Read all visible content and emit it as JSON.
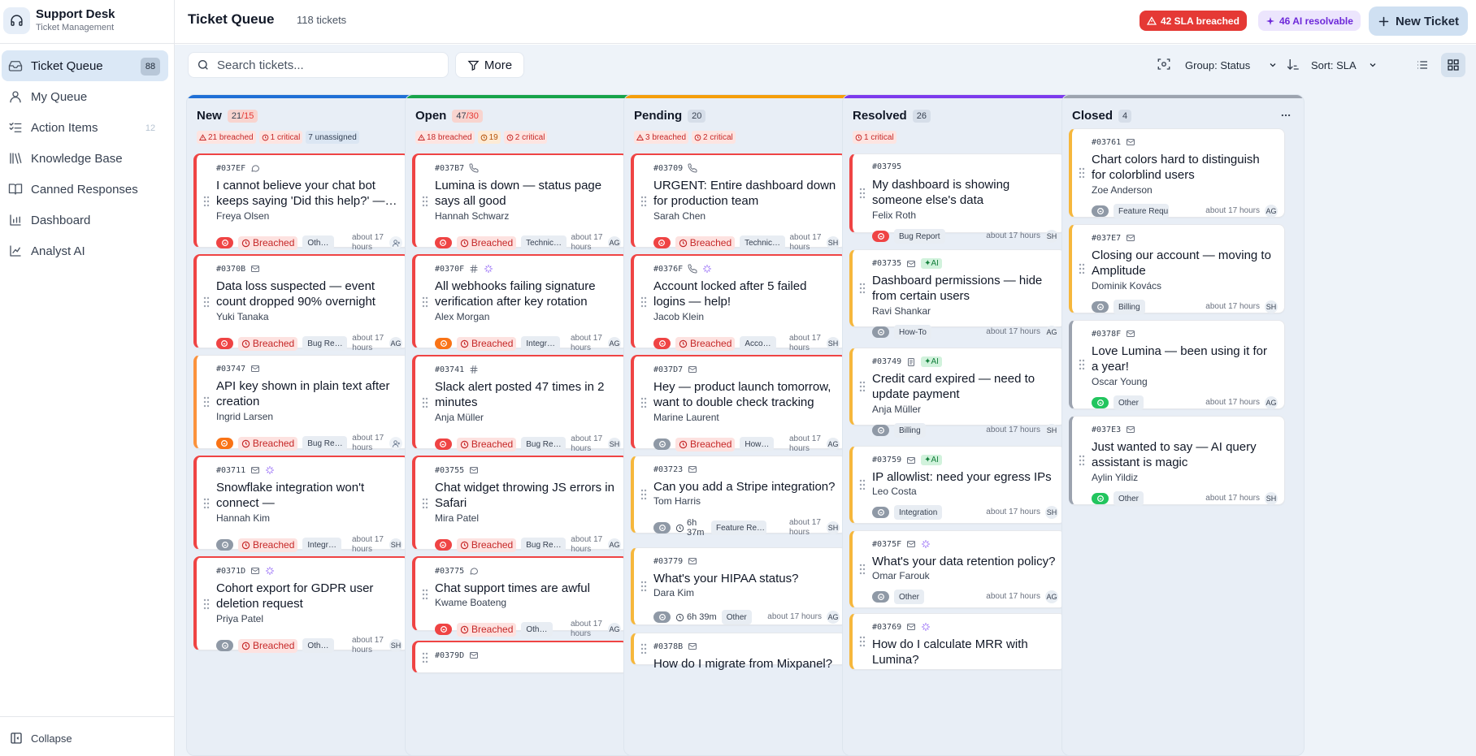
{
  "app": {
    "name": "Support Desk",
    "subtitle": "Ticket Management"
  },
  "sidebar": {
    "items": [
      {
        "label": "Ticket Queue",
        "icon": "inbox-icon",
        "badge": "88",
        "active": true
      },
      {
        "label": "My Queue",
        "icon": "user-icon",
        "badge": ""
      },
      {
        "label": "Action Items",
        "icon": "list-checks-icon",
        "badge": "12"
      },
      {
        "label": "Knowledge Base",
        "icon": "library-icon",
        "badge": ""
      },
      {
        "label": "Canned Responses",
        "icon": "book-open-icon",
        "badge": ""
      },
      {
        "label": "Dashboard",
        "icon": "bar-chart-icon",
        "badge": ""
      },
      {
        "label": "Analyst AI",
        "icon": "analyst-ai-icon",
        "badge": ""
      }
    ],
    "collapse_label": "Collapse"
  },
  "header": {
    "title": "Ticket Queue",
    "count": "118 tickets",
    "sla_pill": "42 SLA breached",
    "ai_pill": "46 AI resolvable",
    "new_ticket": "New Ticket"
  },
  "toolbar": {
    "search_placeholder": "Search tickets...",
    "more": "More",
    "group": "Group: Status",
    "sort": "Sort: SLA"
  },
  "colors": {
    "new": "#1f6fd6",
    "open": "#16a34a",
    "pending": "#f59e0b",
    "resolved": "#7c3aed",
    "closed": "#9ca3af",
    "breach": "#e53935",
    "ai": "#6d28d9"
  },
  "columns": [
    {
      "name": "New",
      "count": "21",
      "limit": "/15",
      "tags": [
        {
          "t": "21 breached",
          "k": "red",
          "i": "alert"
        },
        {
          "t": "1 critical",
          "k": "red",
          "i": "clock"
        },
        {
          "t": "7 unassigned",
          "k": "blue",
          "i": ""
        }
      ],
      "cards": [
        {
          "id": "#037EF",
          "ch": [
            "chat"
          ],
          "ai": false,
          "title": "I cannot believe your chat bot keeps saying 'Did this help?' —…",
          "name": "Freya Olsen",
          "pri": "red",
          "breach": "Breached",
          "sla": "",
          "cat": "Oth…",
          "time": "about 17 hours",
          "av": "",
          "lc": "red"
        },
        {
          "id": "#0370B",
          "ch": [
            "mail"
          ],
          "ai": false,
          "title": "Data loss suspected — event count dropped 90% overnight",
          "name": "Yuki Tanaka",
          "pri": "red",
          "breach": "Breached",
          "sla": "",
          "cat": "Bug Re…",
          "time": "about 17 hours",
          "av": "AG",
          "lc": "red"
        },
        {
          "id": "#03747",
          "ch": [
            "mail"
          ],
          "ai": false,
          "title": "API key shown in plain text after creation",
          "name": "Ingrid Larsen",
          "pri": "orange",
          "breach": "Breached",
          "sla": "",
          "cat": "Bug Re…",
          "time": "about 17 hours",
          "av": "",
          "lc": "orange"
        },
        {
          "id": "#03711",
          "ch": [
            "mail",
            "spark"
          ],
          "ai": false,
          "title": "Snowflake integration won't connect — NETWORK_POLICY…",
          "name": "Hannah Kim",
          "pri": "grey",
          "breach": "Breached",
          "sla": "",
          "cat": "Integr…",
          "time": "about 17 hours",
          "av": "SH",
          "lc": "red"
        },
        {
          "id": "#0371D",
          "ch": [
            "mail",
            "spark"
          ],
          "ai": false,
          "title": "Cohort export for GDPR user deletion request",
          "name": "Priya Patel",
          "pri": "grey",
          "breach": "Breached",
          "sla": "",
          "cat": "Oth…",
          "time": "about 17 hours",
          "av": "SH",
          "lc": "red"
        }
      ]
    },
    {
      "name": "Open",
      "count": "47",
      "limit": "/30",
      "tags": [
        {
          "t": "18 breached",
          "k": "red",
          "i": "alert"
        },
        {
          "t": "19",
          "k": "orange",
          "i": "clock"
        },
        {
          "t": "2 critical",
          "k": "red",
          "i": "clock"
        }
      ],
      "cards": [
        {
          "id": "#037B7",
          "ch": [
            "phone"
          ],
          "ai": false,
          "title": "Lumina is down — status page says all good",
          "name": "Hannah Schwarz",
          "pri": "red",
          "breach": "Breached",
          "sla": "",
          "cat": "Technic…",
          "time": "about 17 hours",
          "av": "AG",
          "lc": "red"
        },
        {
          "id": "#0370F",
          "ch": [
            "hash",
            "spark"
          ],
          "ai": false,
          "title": "All webhooks failing signature verification after key rotation",
          "name": "Alex Morgan",
          "pri": "orange",
          "breach": "Breached",
          "sla": "",
          "cat": "Integr…",
          "time": "about 17 hours",
          "av": "AG",
          "lc": "red"
        },
        {
          "id": "#03741",
          "ch": [
            "hash"
          ],
          "ai": false,
          "title": "Slack alert posted 47 times in 2 minutes",
          "name": "Anja Müller",
          "pri": "red",
          "breach": "Breached",
          "sla": "",
          "cat": "Bug Re…",
          "time": "about 17 hours",
          "av": "SH",
          "lc": "red"
        },
        {
          "id": "#03755",
          "ch": [
            "mail"
          ],
          "ai": false,
          "title": "Chat widget throwing JS errors in Safari",
          "name": "Mira Patel",
          "pri": "red",
          "breach": "Breached",
          "sla": "",
          "cat": "Bug Re…",
          "time": "about 17 hours",
          "av": "AG",
          "lc": "red"
        },
        {
          "id": "#03775",
          "ch": [
            "chat"
          ],
          "ai": false,
          "title": "Chat support times are awful",
          "name": "Kwame Boateng",
          "pri": "red",
          "breach": "Breached",
          "sla": "",
          "cat": "Oth…",
          "time": "about 17 hours",
          "av": "AG",
          "lc": "red"
        },
        {
          "id": "#0379D",
          "ch": [
            "mail"
          ],
          "ai": false,
          "title": "",
          "name": "",
          "pri": "",
          "breach": "",
          "sla": "",
          "cat": "",
          "time": "",
          "av": "",
          "lc": "red"
        }
      ]
    },
    {
      "name": "Pending",
      "count": "20",
      "limit": "",
      "tags": [
        {
          "t": "3 breached",
          "k": "red",
          "i": "alert"
        },
        {
          "t": "2 critical",
          "k": "red",
          "i": "clock"
        }
      ],
      "cards": [
        {
          "id": "#03709",
          "ch": [
            "phone"
          ],
          "ai": false,
          "title": "URGENT: Entire dashboard down for production team",
          "name": "Sarah Chen",
          "pri": "red",
          "breach": "Breached",
          "sla": "",
          "cat": "Technic…",
          "time": "about 17 hours",
          "av": "SH",
          "lc": "red"
        },
        {
          "id": "#0376F",
          "ch": [
            "phone",
            "spark"
          ],
          "ai": false,
          "title": "Account locked after 5 failed logins — help!",
          "name": "Jacob Klein",
          "pri": "red",
          "breach": "Breached",
          "sla": "",
          "cat": "Acco…",
          "time": "about 17 hours",
          "av": "SH",
          "lc": "red"
        },
        {
          "id": "#037D7",
          "ch": [
            "mail"
          ],
          "ai": false,
          "title": "Hey — product launch tomorrow, want to double check tracking",
          "name": "Marine Laurent",
          "pri": "grey",
          "breach": "Breached",
          "sla": "",
          "cat": "How…",
          "time": "about 17 hours",
          "av": "AG",
          "lc": "red"
        },
        {
          "id": "#03723",
          "ch": [
            "mail"
          ],
          "ai": false,
          "title": "Can you add a Stripe integration?",
          "name": "Tom Harris",
          "pri": "grey",
          "breach": "",
          "sla": "6h 37m",
          "cat": "Feature Re…",
          "time": "about 17 hours",
          "av": "SH",
          "lc": "yellow"
        },
        {
          "id": "#03779",
          "ch": [
            "mail"
          ],
          "ai": false,
          "title": "What's your HIPAA status?",
          "name": "Dara Kim",
          "pri": "grey",
          "breach": "",
          "sla": "6h 39m",
          "cat": "Other",
          "time": "about 17 hours",
          "av": "AG",
          "lc": "yellow"
        },
        {
          "id": "#0378B",
          "ch": [
            "mail"
          ],
          "ai": false,
          "title": "How do I migrate from Mixpanel?",
          "name": "",
          "pri": "",
          "breach": "",
          "sla": "",
          "cat": "",
          "time": "",
          "av": "",
          "lc": "yellow"
        }
      ]
    },
    {
      "name": "Resolved",
      "count": "26",
      "limit": "",
      "tags": [
        {
          "t": "1 critical",
          "k": "red",
          "i": "clock"
        }
      ],
      "cards": [
        {
          "id": "#03795",
          "ch": [],
          "ai": false,
          "title": "My dashboard is showing someone else's data",
          "name": "Felix Roth",
          "pri": "red",
          "breach": "",
          "sla": "",
          "cat": "Bug Report",
          "time": "about 17 hours",
          "av": "SH",
          "lc": "red"
        },
        {
          "id": "#03735",
          "ch": [
            "mail"
          ],
          "ai": true,
          "title": "Dashboard permissions — hide from certain users",
          "name": "Ravi Shankar",
          "pri": "grey",
          "breach": "",
          "sla": "",
          "cat": "How-To",
          "time": "about 17 hours",
          "av": "AG",
          "lc": "yellow"
        },
        {
          "id": "#03749",
          "ch": [
            "doc"
          ],
          "ai": true,
          "title": "Credit card expired — need to update payment",
          "name": "Anja Müller",
          "pri": "grey",
          "breach": "",
          "sla": "",
          "cat": "Billing",
          "time": "about 17 hours",
          "av": "SH",
          "lc": "yellow"
        },
        {
          "id": "#03759",
          "ch": [
            "mail"
          ],
          "ai": true,
          "title": "IP allowlist: need your egress IPs",
          "name": "Leo Costa",
          "pri": "grey",
          "breach": "",
          "sla": "",
          "cat": "Integration",
          "time": "about 17 hours",
          "av": "SH",
          "lc": "yellow"
        },
        {
          "id": "#0375F",
          "ch": [
            "mail",
            "spark"
          ],
          "ai": false,
          "title": "What's your data retention policy?",
          "name": "Omar Farouk",
          "pri": "grey",
          "breach": "",
          "sla": "",
          "cat": "Other",
          "time": "about 17 hours",
          "av": "AG",
          "lc": "yellow"
        },
        {
          "id": "#03769",
          "ch": [
            "mail",
            "spark"
          ],
          "ai": false,
          "title": "How do I calculate MRR with Lumina?",
          "name": "",
          "pri": "",
          "breach": "",
          "sla": "",
          "cat": "",
          "time": "",
          "av": "",
          "lc": "yellow"
        }
      ]
    },
    {
      "name": "Closed",
      "count": "4",
      "limit": "",
      "tags": [],
      "cards": [
        {
          "id": "#03761",
          "ch": [
            "mail"
          ],
          "ai": false,
          "title": "Chart colors hard to distinguish for colorblind users",
          "name": "Zoe Anderson",
          "pri": "grey",
          "breach": "",
          "sla": "",
          "cat": "Feature Requ…",
          "time": "about 17 hours",
          "av": "AG",
          "lc": "yellow"
        },
        {
          "id": "#037E7",
          "ch": [
            "mail"
          ],
          "ai": false,
          "title": "Closing our account — moving to Amplitude",
          "name": "Dominik Kovács",
          "pri": "grey",
          "breach": "",
          "sla": "",
          "cat": "Billing",
          "time": "about 17 hours",
          "av": "SH",
          "lc": "yellow"
        },
        {
          "id": "#0378F",
          "ch": [
            "mail"
          ],
          "ai": false,
          "title": "Love Lumina — been using it for a year!",
          "name": "Oscar Young",
          "pri": "green",
          "breach": "",
          "sla": "",
          "cat": "Other",
          "time": "about 17 hours",
          "av": "AG",
          "lc": "grey"
        },
        {
          "id": "#037E3",
          "ch": [
            "mail"
          ],
          "ai": false,
          "title": "Just wanted to say — AI query assistant is magic",
          "name": "Aylin Yildiz",
          "pri": "green",
          "breach": "",
          "sla": "",
          "cat": "Other",
          "time": "about 17 hours",
          "av": "SH",
          "lc": "grey"
        }
      ]
    }
  ]
}
